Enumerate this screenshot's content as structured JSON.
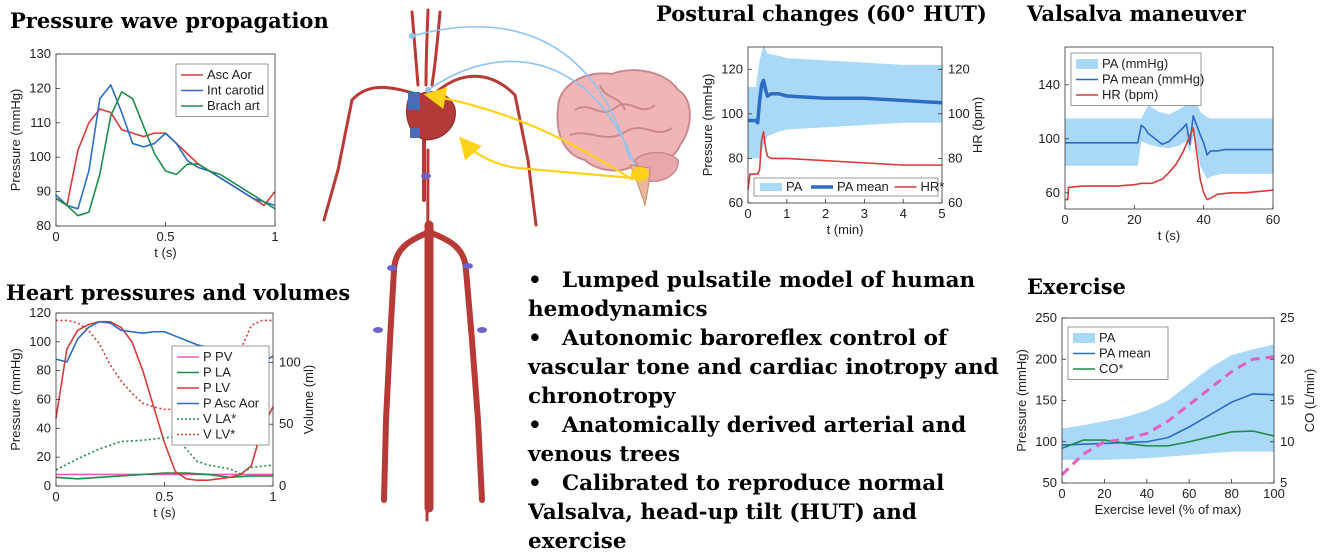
{
  "headings": {
    "pressure_wave": "Pressure wave propagation",
    "heart": "Heart pressures and volumes",
    "postural": "Postural changes (60° HUT)",
    "valsalva": "Valsalva maneuver",
    "exercise": "Exercise"
  },
  "bullets": [
    {
      "marker": "•",
      "text": "Lumped pulsatile model of human hemodynamics"
    },
    {
      "marker": "•",
      "text": "Autonomic baroreflex control of vascular tone and cardiac inotropy and chronotropy"
    },
    {
      "marker": "•",
      "text": "Anatomically derived arterial and venous trees"
    },
    {
      "marker": "•",
      "text": "Calibrated to reproduce normal Valsalva, head-up tilt (HUT) and exercise"
    }
  ],
  "colors": {
    "red": "#d93a3a",
    "blue": "#2b6cc4",
    "green": "#1e8c4a",
    "pink": "#e05ec0",
    "light_blue": "#aad8f7",
    "magenta_dashed": "#e35fc0",
    "artery": "#b83a36",
    "vein": "#6c63c9"
  },
  "chart_data": [
    {
      "id": "pressure_wave",
      "type": "line",
      "xlabel": "t (s)",
      "ylabel": "Pressure (mmHg)",
      "xlim": [
        0,
        1
      ],
      "ylim": [
        80,
        130
      ],
      "xticks": [
        "0",
        "0.5",
        "1"
      ],
      "yticks": [
        "80",
        "90",
        "100",
        "110",
        "120",
        "130"
      ],
      "legend_position": "top-right",
      "series": [
        {
          "name": "Asc Aor",
          "color": "#d93a3a",
          "x": [
            0,
            0.05,
            0.1,
            0.15,
            0.2,
            0.25,
            0.3,
            0.35,
            0.4,
            0.45,
            0.5,
            0.55,
            0.6,
            0.65,
            0.7,
            0.75,
            0.8,
            0.85,
            0.9,
            0.95,
            1.0
          ],
          "y": [
            88,
            86,
            102,
            110,
            114,
            113,
            108,
            107,
            106,
            107,
            107,
            104,
            101,
            98,
            96,
            94,
            92,
            90,
            88,
            86,
            90
          ]
        },
        {
          "name": "Int carotid",
          "color": "#2b6cc4",
          "x": [
            0,
            0.05,
            0.1,
            0.15,
            0.2,
            0.25,
            0.3,
            0.35,
            0.4,
            0.45,
            0.5,
            0.55,
            0.6,
            0.65,
            0.7,
            0.75,
            0.8,
            0.85,
            0.9,
            0.95,
            1.0
          ],
          "y": [
            89,
            86,
            85,
            96,
            117,
            121,
            113,
            104,
            103,
            104,
            107,
            104,
            99,
            97,
            96,
            94,
            92,
            90,
            88,
            87,
            86
          ]
        },
        {
          "name": "Brach art",
          "color": "#1e8c4a",
          "x": [
            0,
            0.05,
            0.1,
            0.15,
            0.2,
            0.25,
            0.3,
            0.35,
            0.4,
            0.45,
            0.5,
            0.55,
            0.6,
            0.65,
            0.7,
            0.75,
            0.8,
            0.85,
            0.9,
            0.95,
            1.0
          ],
          "y": [
            88,
            86,
            83,
            84,
            95,
            112,
            119,
            117,
            109,
            101,
            96,
            95,
            98,
            98,
            96,
            95,
            93,
            91,
            89,
            87,
            85
          ]
        }
      ]
    },
    {
      "id": "heart",
      "type": "line",
      "xlabel": "t (s)",
      "ylabel": "Pressure (mmHg)",
      "ylabel_right": "Volume (ml)",
      "xlim": [
        0,
        1
      ],
      "ylim": [
        0,
        120
      ],
      "ylim_right": [
        0,
        140
      ],
      "xticks": [
        "0",
        "0.5",
        "1"
      ],
      "yticks": [
        "0",
        "20",
        "40",
        "60",
        "80",
        "100",
        "120"
      ],
      "yticks_right": [
        "0",
        "50",
        "100"
      ],
      "legend_position": "right",
      "series": [
        {
          "name": "P PV",
          "color": "#e05ec0",
          "style": "solid",
          "axis": "left",
          "x": [
            0,
            0.2,
            0.4,
            0.6,
            0.8,
            1.0
          ],
          "y": [
            8,
            8,
            8,
            8,
            8,
            8
          ]
        },
        {
          "name": "P LA",
          "color": "#1e8c4a",
          "style": "solid",
          "axis": "left",
          "x": [
            0,
            0.1,
            0.2,
            0.3,
            0.4,
            0.5,
            0.6,
            0.7,
            0.8,
            0.9,
            1.0
          ],
          "y": [
            6,
            5,
            6,
            7,
            8,
            9,
            9,
            8,
            6,
            7,
            7
          ]
        },
        {
          "name": "P LV",
          "color": "#d93a3a",
          "style": "solid",
          "axis": "left",
          "x": [
            0,
            0.05,
            0.1,
            0.15,
            0.2,
            0.25,
            0.3,
            0.35,
            0.4,
            0.45,
            0.5,
            0.55,
            0.6,
            0.65,
            0.7,
            0.75,
            0.8,
            0.85,
            0.9,
            0.95,
            1.0
          ],
          "y": [
            47,
            95,
            108,
            112,
            114,
            114,
            110,
            100,
            80,
            55,
            30,
            10,
            5,
            4,
            4,
            5,
            6,
            8,
            14,
            40,
            55
          ]
        },
        {
          "name": "P Asc Aor",
          "color": "#2b6cc4",
          "style": "solid",
          "axis": "left",
          "x": [
            0,
            0.05,
            0.1,
            0.15,
            0.2,
            0.25,
            0.3,
            0.35,
            0.4,
            0.45,
            0.5,
            0.55,
            0.6,
            0.65,
            0.7,
            0.75,
            0.8,
            0.85,
            0.9,
            0.95,
            1.0
          ],
          "y": [
            88,
            86,
            102,
            110,
            114,
            113,
            108,
            107,
            106,
            107,
            107,
            104,
            101,
            98,
            96,
            94,
            92,
            90,
            88,
            86,
            90
          ]
        },
        {
          "name": "V LA*",
          "color": "#1e8c4a",
          "style": "dotted",
          "axis": "right",
          "x": [
            0,
            0.1,
            0.2,
            0.3,
            0.4,
            0.5,
            0.55,
            0.6,
            0.65,
            0.7,
            0.8,
            0.85,
            0.9,
            1.0
          ],
          "y": [
            13,
            22,
            30,
            36,
            37,
            39,
            40,
            30,
            20,
            17,
            14,
            10,
            15,
            17
          ]
        },
        {
          "name": "V LV*",
          "color": "#d93a3a",
          "style": "dotted",
          "axis": "right",
          "x": [
            0,
            0.05,
            0.1,
            0.15,
            0.2,
            0.25,
            0.3,
            0.35,
            0.4,
            0.45,
            0.5,
            0.55,
            0.6,
            0.65,
            0.7,
            0.75,
            0.8,
            0.85,
            0.9,
            0.95,
            1.0
          ],
          "y": [
            134,
            134,
            132,
            126,
            115,
            98,
            85,
            75,
            67,
            64,
            62,
            62,
            62,
            62,
            62,
            65,
            80,
            110,
            130,
            134,
            134
          ]
        }
      ]
    },
    {
      "id": "postural",
      "type": "line",
      "xlabel": "t (min)",
      "ylabel": "Pressure (mmHg)",
      "ylabel_right": "HR (bpm)",
      "xlim": [
        0,
        5
      ],
      "ylim": [
        60,
        130
      ],
      "ylim_right": [
        60,
        130
      ],
      "xticks": [
        "0",
        "1",
        "2",
        "3",
        "4",
        "5"
      ],
      "yticks": [
        "60",
        "80",
        "100",
        "120"
      ],
      "yticks_right": [
        "60",
        "80",
        "100",
        "120"
      ],
      "legend_position": "bottom",
      "series": [
        {
          "name": "PA",
          "color": "#aad8f7",
          "style": "band",
          "x": [
            0,
            0.1,
            0.2,
            0.3,
            0.4,
            0.5,
            0.8,
            1,
            2,
            3,
            4,
            5
          ],
          "y_low": [
            80,
            80,
            80,
            80,
            86,
            90,
            92,
            93,
            94,
            95,
            96,
            96
          ],
          "y_high": [
            112,
            112,
            112,
            124,
            131,
            127,
            126,
            125,
            124,
            123,
            122,
            122
          ]
        },
        {
          "name": "PA mean",
          "color": "#2b6cc4",
          "style": "thick",
          "x": [
            0,
            0.1,
            0.2,
            0.25,
            0.3,
            0.35,
            0.4,
            0.45,
            0.5,
            0.6,
            0.8,
            1,
            2,
            3,
            4,
            5
          ],
          "y": [
            97,
            97,
            97,
            96,
            106,
            113,
            115,
            111,
            108,
            109,
            109,
            108,
            107,
            107,
            106,
            105
          ]
        },
        {
          "name": "HR*",
          "color": "#d93a3a",
          "style": "solid",
          "x": [
            0,
            0.05,
            0.1,
            0.2,
            0.25,
            0.3,
            0.35,
            0.4,
            0.45,
            0.5,
            0.6,
            0.8,
            1,
            2,
            3,
            4,
            5
          ],
          "y": [
            66,
            73,
            73,
            73,
            73,
            75,
            88,
            92,
            85,
            81,
            80,
            80,
            80,
            79,
            78,
            77,
            77
          ]
        }
      ]
    },
    {
      "id": "valsalva",
      "type": "line",
      "xlabel": "t (s)",
      "ylabel": "",
      "xlim": [
        0,
        60
      ],
      "ylim": [
        48,
        168
      ],
      "xticks": [
        "0",
        "20",
        "40",
        "60"
      ],
      "yticks": [
        "60",
        "100",
        "140"
      ],
      "legend_position": "top-left",
      "series": [
        {
          "name": "PA (mmHg)",
          "color": "#aad8f7",
          "style": "band",
          "x": [
            0,
            21,
            22,
            24,
            27,
            30,
            33,
            35,
            36,
            37,
            38,
            39,
            40,
            41,
            42,
            45,
            50,
            60
          ],
          "y_low": [
            80,
            80,
            98,
            96,
            94,
            93,
            95,
            98,
            90,
            102,
            95,
            80,
            75,
            70,
            72,
            74,
            74,
            74
          ],
          "y_high": [
            115,
            115,
            115,
            125,
            120,
            118,
            122,
            125,
            130,
            132,
            126,
            120,
            118,
            116,
            115,
            115,
            115,
            115
          ]
        },
        {
          "name": "PA mean (mmHg)",
          "color": "#2b6cc4",
          "style": "solid",
          "x": [
            0,
            21,
            22,
            23,
            24,
            26,
            28,
            30,
            32,
            34,
            35,
            36,
            37,
            38,
            39,
            40,
            41,
            42,
            44,
            46,
            50,
            60
          ],
          "y": [
            97,
            97,
            110,
            108,
            104,
            100,
            96,
            98,
            103,
            108,
            111,
            96,
            117,
            110,
            103,
            97,
            88,
            91,
            91,
            92,
            92,
            92
          ]
        },
        {
          "name": "HR (bpm)",
          "color": "#d93a3a",
          "style": "solid",
          "x": [
            0,
            0.8,
            1,
            5,
            10,
            15,
            20,
            22,
            25,
            28,
            30,
            32,
            34,
            35,
            36,
            37,
            38,
            38.5,
            39,
            40,
            41,
            42,
            44,
            48,
            52,
            56,
            60
          ],
          "y": [
            55,
            55,
            64,
            65,
            65,
            65,
            66,
            67,
            67,
            70,
            75,
            81,
            90,
            96,
            102,
            108,
            90,
            80,
            70,
            60,
            55,
            56,
            59,
            60,
            60,
            61,
            62
          ]
        }
      ]
    },
    {
      "id": "exercise",
      "type": "line",
      "xlabel": "Exercise level (% of max)",
      "ylabel": "Pressure (mmHg)",
      "ylabel_right": "CO (L/min)",
      "xlim": [
        0,
        100
      ],
      "ylim": [
        50,
        250
      ],
      "ylim_right": [
        5,
        25
      ],
      "xticks": [
        "0",
        "20",
        "40",
        "60",
        "80",
        "100"
      ],
      "yticks": [
        "50",
        "100",
        "150",
        "200",
        "250"
      ],
      "yticks_right": [
        "5",
        "10",
        "15",
        "20",
        "25"
      ],
      "legend_position": "top-left",
      "series": [
        {
          "name": "PA",
          "color": "#aad8f7",
          "style": "band",
          "x": [
            0,
            10,
            20,
            30,
            40,
            50,
            60,
            70,
            80,
            90,
            100
          ],
          "y_low": [
            78,
            78,
            78,
            79,
            80,
            82,
            84,
            86,
            88,
            88,
            88
          ],
          "y_high": [
            116,
            120,
            125,
            130,
            138,
            150,
            170,
            190,
            205,
            212,
            218
          ]
        },
        {
          "name": "PA mean",
          "color": "#2b6cc4",
          "style": "solid",
          "x": [
            0,
            10,
            20,
            30,
            40,
            50,
            60,
            70,
            80,
            90,
            100
          ],
          "y": [
            96,
            97,
            98,
            99,
            100,
            105,
            118,
            133,
            148,
            158,
            157
          ]
        },
        {
          "name": "CO*",
          "color": "#1e8c4a",
          "style": "solid",
          "x": [
            0,
            10,
            20,
            30,
            40,
            50,
            60,
            70,
            80,
            90,
            100
          ],
          "y": [
            92,
            102,
            102,
            98,
            95,
            95,
            100,
            106,
            112,
            113,
            107
          ]
        },
        {
          "name": "",
          "color": "#e35fc0",
          "style": "dashed",
          "axis": "right",
          "x": [
            0,
            10,
            20,
            30,
            40,
            50,
            60,
            70,
            80,
            90,
            100
          ],
          "y": [
            6,
            8.5,
            10,
            10.3,
            11,
            12.5,
            14.5,
            16.5,
            18.5,
            20,
            20.3
          ]
        }
      ]
    }
  ]
}
